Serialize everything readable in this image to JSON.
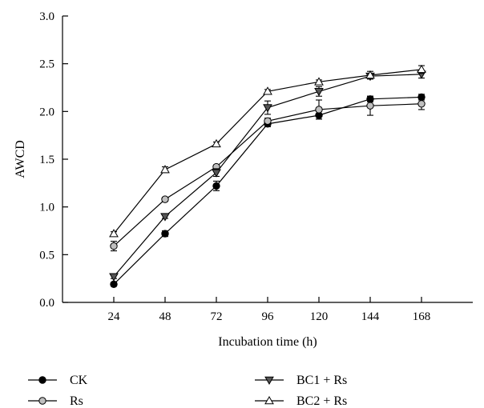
{
  "chart_data": {
    "type": "line",
    "xlabel": "Incubation time (h)",
    "ylabel": "AWCD",
    "x": [
      24,
      48,
      72,
      96,
      120,
      144,
      168
    ],
    "xlim": [
      0,
      192
    ],
    "ylim": [
      0,
      3.0
    ],
    "y_ticks": [
      0.0,
      0.5,
      1.0,
      1.5,
      2.0,
      2.5,
      3.0
    ],
    "y_tick_labels": [
      "0.0",
      "0.5",
      "1.0",
      "1.5",
      "2.0",
      "2.5",
      "3.0"
    ],
    "x_tick_labels": [
      "24",
      "48",
      "72",
      "96",
      "120",
      "144",
      "168"
    ],
    "grid": false,
    "legend_placement": "bottom",
    "series": [
      {
        "name": "CK",
        "marker": "filled-circle",
        "values": [
          0.19,
          0.72,
          1.22,
          1.87,
          1.96,
          2.13,
          2.15
        ],
        "errors": [
          0.02,
          0.03,
          0.05,
          0.03,
          0.04,
          0.03,
          0.03
        ]
      },
      {
        "name": "Rs",
        "marker": "open-circle",
        "values": [
          0.59,
          1.08,
          1.42,
          1.9,
          2.02,
          2.06,
          2.08
        ],
        "errors": [
          0.05,
          0.02,
          0.02,
          0.03,
          0.1,
          0.1,
          0.06
        ]
      },
      {
        "name": "BC1 + Rs",
        "marker": "filled-triangle-down",
        "values": [
          0.27,
          0.9,
          1.36,
          2.04,
          2.21,
          2.37,
          2.39
        ],
        "errors": [
          0.02,
          0.02,
          0.04,
          0.07,
          0.05,
          0.03,
          0.04
        ]
      },
      {
        "name": "BC2 + Rs",
        "marker": "open-triangle-up",
        "values": [
          0.72,
          1.39,
          1.66,
          2.21,
          2.31,
          2.38,
          2.44
        ],
        "errors": [
          0.02,
          0.03,
          0.02,
          0.02,
          0.02,
          0.04,
          0.04
        ]
      }
    ]
  }
}
